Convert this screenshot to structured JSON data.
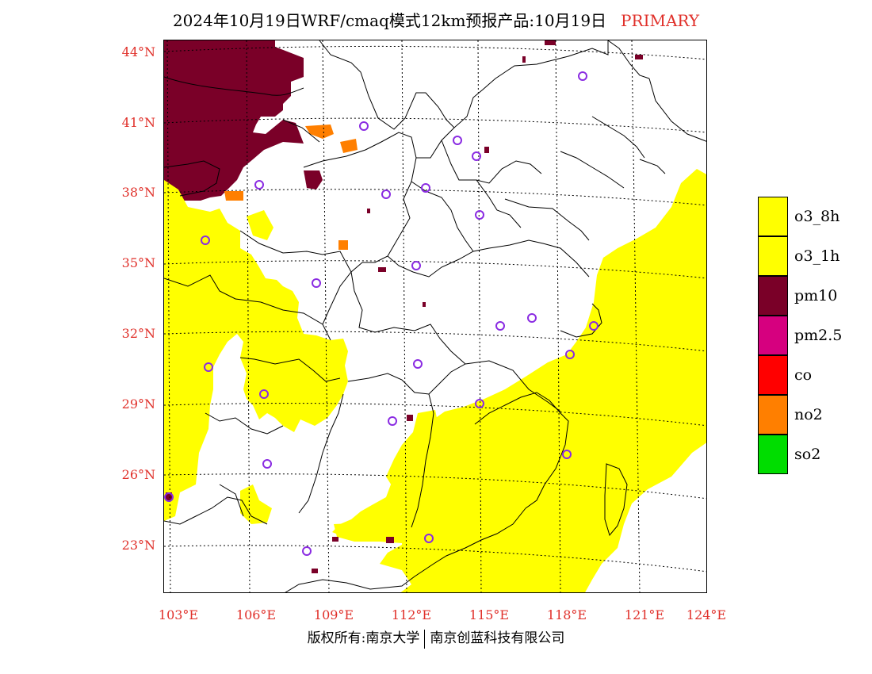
{
  "title": {
    "main": "2024年10月19日WRF/cmaq模式12km预报产品:10月19日",
    "tag": "PRIMARY"
  },
  "axes": {
    "latitude_labels": [
      "44°N",
      "41°N",
      "38°N",
      "35°N",
      "32°N",
      "29°N",
      "26°N",
      "23°N"
    ],
    "longitude_labels": [
      "103°E",
      "106°E",
      "109°E",
      "112°E",
      "115°E",
      "118°E",
      "121°E",
      "124°E"
    ]
  },
  "legend": {
    "items": [
      {
        "label": "o3_8h",
        "color": "#ffff00"
      },
      {
        "label": "o3_1h",
        "color": "#ffff00"
      },
      {
        "label": "pm10",
        "color": "#7a0028"
      },
      {
        "label": "pm2.5",
        "color": "#d6007f"
      },
      {
        "label": "co",
        "color": "#ff0000"
      },
      {
        "label": "no2",
        "color": "#ff7f00"
      },
      {
        "label": "so2",
        "color": "#00dd00"
      }
    ]
  },
  "colors": {
    "accent_labels": "#e0302a",
    "station_marker": "#8a2be2"
  },
  "footer": {
    "left": "版权所有:南京大学",
    "right": "南京创蓝科技有限公司"
  }
}
